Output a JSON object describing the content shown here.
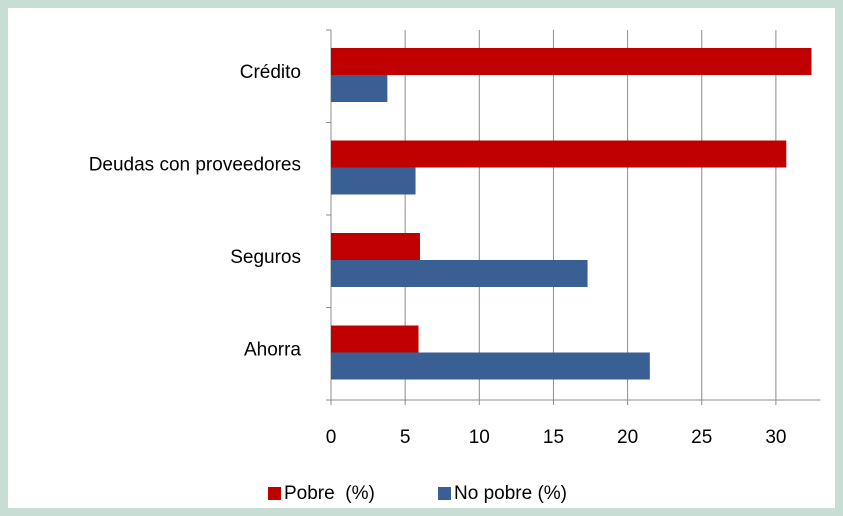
{
  "chart_data": {
    "type": "hbar",
    "categories": [
      "Crédito",
      "Deudas con proveedores",
      "Seguros",
      "Ahorra"
    ],
    "series": [
      {
        "name": "Pobre  (%)",
        "color": "#c00000",
        "values": [
          32.4,
          30.7,
          6.0,
          5.9
        ]
      },
      {
        "name": "No pobre (%)",
        "color": "#3a5f94",
        "values": [
          3.8,
          5.7,
          17.3,
          21.5
        ]
      }
    ],
    "xlim": [
      0,
      33
    ],
    "xticks": [
      0,
      5,
      10,
      15,
      20,
      25,
      30
    ],
    "grid": true,
    "legend": "bottom"
  }
}
